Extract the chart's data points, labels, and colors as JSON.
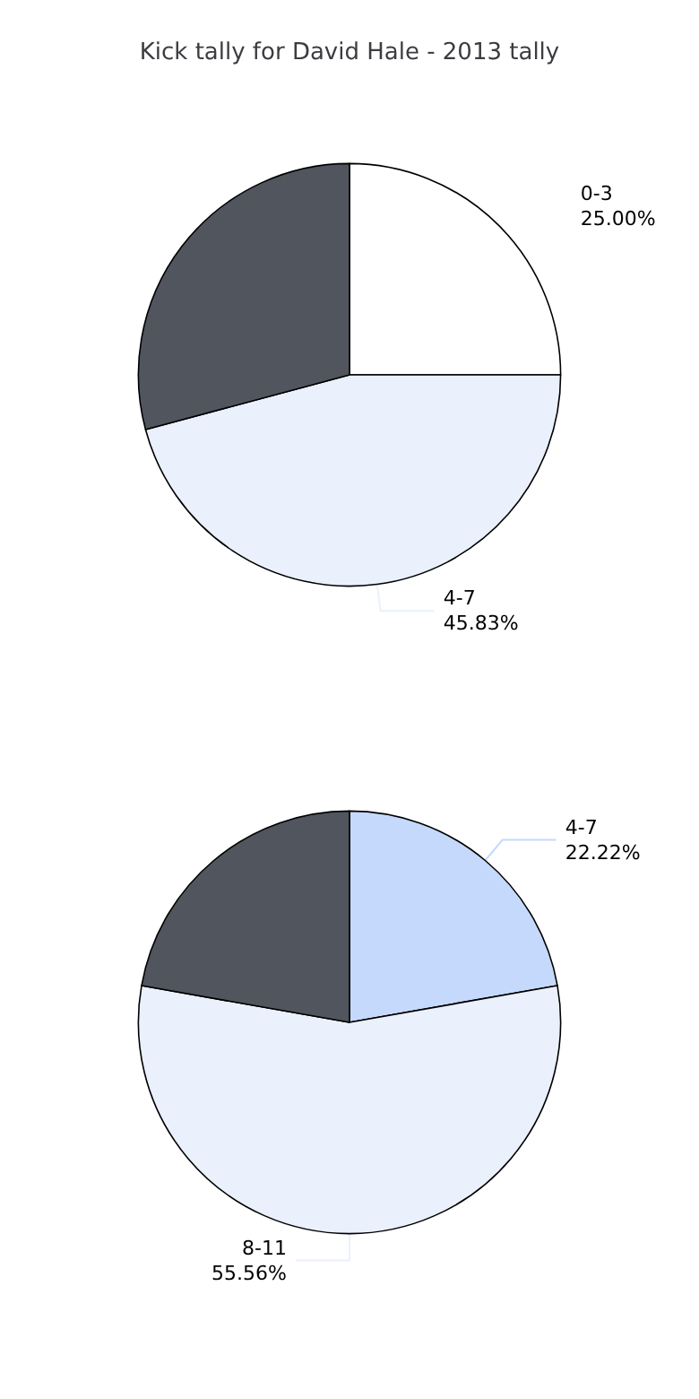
{
  "chart_data": [
    {
      "type": "pie",
      "title": "Kick tally for David Hale - 2013 tally",
      "categories": [
        "0-3",
        "4-7",
        null
      ],
      "values": [
        25.0,
        45.83,
        29.17
      ],
      "value_labels": [
        "25.00%",
        "45.83%",
        null
      ],
      "colors": [
        "#ffffff",
        "#eaf0fc",
        "#50555e"
      ]
    },
    {
      "type": "pie",
      "categories": [
        "4-7",
        "8-11",
        null
      ],
      "values": [
        22.22,
        55.56,
        22.22
      ],
      "value_labels": [
        "22.22%",
        "55.56%",
        null
      ],
      "colors": [
        "#c5d9fd",
        "#eaf0fc",
        "#50555e"
      ]
    }
  ]
}
